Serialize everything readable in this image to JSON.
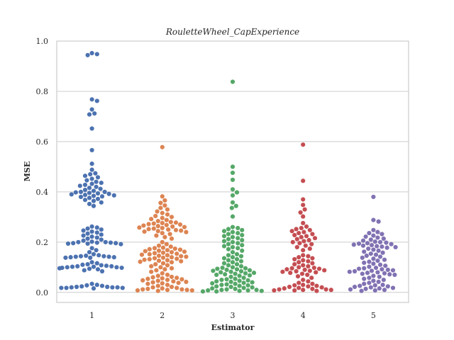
{
  "chart_data": {
    "type": "scatter",
    "subtype": "swarm",
    "title": "RouletteWheel_CapExperience",
    "xlabel": "Estimator",
    "ylabel": "MSE",
    "categories": [
      "1",
      "2",
      "3",
      "4",
      "5"
    ],
    "ylim": [
      -0.04,
      1.0
    ],
    "yticks": [
      "0.0",
      "0.2",
      "0.4",
      "0.6",
      "0.8",
      "1.0"
    ],
    "grid": true,
    "legend": "none",
    "colors": [
      "#4c72b0",
      "#dd8452",
      "#55a868",
      "#c44e52",
      "#8172b3"
    ],
    "series": [
      {
        "category": "1",
        "values": [
          0.952,
          0.948,
          0.944,
          0.768,
          0.762,
          0.728,
          0.712,
          0.708,
          0.652,
          0.566,
          0.512,
          0.488,
          0.474,
          0.47,
          0.464,
          0.458,
          0.452,
          0.446,
          0.44,
          0.436,
          0.432,
          0.428,
          0.424,
          0.42,
          0.416,
          0.412,
          0.408,
          0.404,
          0.4,
          0.4,
          0.398,
          0.396,
          0.394,
          0.392,
          0.39,
          0.388,
          0.386,
          0.384,
          0.382,
          0.38,
          0.376,
          0.372,
          0.368,
          0.364,
          0.358,
          0.352,
          0.344,
          0.262,
          0.258,
          0.254,
          0.25,
          0.246,
          0.242,
          0.238,
          0.234,
          0.23,
          0.226,
          0.222,
          0.218,
          0.214,
          0.21,
          0.206,
          0.202,
          0.2,
          0.2,
          0.198,
          0.198,
          0.196,
          0.196,
          0.194,
          0.194,
          0.192,
          0.176,
          0.168,
          0.16,
          0.152,
          0.148,
          0.146,
          0.144,
          0.144,
          0.142,
          0.142,
          0.14,
          0.14,
          0.138,
          0.138,
          0.12,
          0.116,
          0.112,
          0.11,
          0.108,
          0.106,
          0.104,
          0.104,
          0.102,
          0.102,
          0.1,
          0.1,
          0.098,
          0.098,
          0.096,
          0.094,
          0.092,
          0.088,
          0.084,
          0.034,
          0.03,
          0.028,
          0.026,
          0.024,
          0.022,
          0.022,
          0.02,
          0.02,
          0.02,
          0.018,
          0.018,
          0.018,
          0.016
        ]
      },
      {
        "category": "2",
        "values": [
          0.578,
          0.382,
          0.366,
          0.356,
          0.346,
          0.336,
          0.33,
          0.322,
          0.316,
          0.31,
          0.304,
          0.3,
          0.296,
          0.292,
          0.288,
          0.284,
          0.28,
          0.278,
          0.276,
          0.274,
          0.272,
          0.27,
          0.268,
          0.266,
          0.264,
          0.262,
          0.26,
          0.258,
          0.256,
          0.254,
          0.252,
          0.25,
          0.248,
          0.246,
          0.244,
          0.242,
          0.24,
          0.236,
          0.232,
          0.226,
          0.22,
          0.214,
          0.2,
          0.192,
          0.186,
          0.182,
          0.178,
          0.176,
          0.174,
          0.172,
          0.17,
          0.168,
          0.166,
          0.164,
          0.162,
          0.16,
          0.158,
          0.156,
          0.154,
          0.152,
          0.15,
          0.148,
          0.146,
          0.144,
          0.142,
          0.14,
          0.138,
          0.136,
          0.134,
          0.132,
          0.13,
          0.128,
          0.126,
          0.124,
          0.122,
          0.12,
          0.116,
          0.112,
          0.108,
          0.104,
          0.1,
          0.096,
          0.092,
          0.088,
          0.082,
          0.076,
          0.07,
          0.066,
          0.062,
          0.06,
          0.058,
          0.056,
          0.054,
          0.052,
          0.05,
          0.048,
          0.046,
          0.044,
          0.042,
          0.04,
          0.038,
          0.036,
          0.034,
          0.03,
          0.026,
          0.022,
          0.02,
          0.018,
          0.016,
          0.014,
          0.012,
          0.012,
          0.01,
          0.01,
          0.008,
          0.008,
          0.006
        ]
      },
      {
        "category": "3",
        "values": [
          0.838,
          0.5,
          0.476,
          0.448,
          0.41,
          0.398,
          0.386,
          0.358,
          0.344,
          0.336,
          0.302,
          0.26,
          0.256,
          0.252,
          0.248,
          0.244,
          0.24,
          0.236,
          0.232,
          0.228,
          0.224,
          0.22,
          0.216,
          0.212,
          0.208,
          0.204,
          0.2,
          0.196,
          0.192,
          0.188,
          0.184,
          0.18,
          0.176,
          0.172,
          0.166,
          0.16,
          0.152,
          0.148,
          0.144,
          0.14,
          0.136,
          0.132,
          0.128,
          0.124,
          0.12,
          0.116,
          0.112,
          0.108,
          0.104,
          0.1,
          0.098,
          0.096,
          0.094,
          0.092,
          0.09,
          0.088,
          0.086,
          0.084,
          0.082,
          0.08,
          0.078,
          0.076,
          0.074,
          0.072,
          0.07,
          0.068,
          0.066,
          0.062,
          0.058,
          0.054,
          0.052,
          0.05,
          0.048,
          0.046,
          0.044,
          0.042,
          0.04,
          0.038,
          0.036,
          0.034,
          0.032,
          0.03,
          0.028,
          0.026,
          0.024,
          0.022,
          0.02,
          0.018,
          0.016,
          0.014,
          0.012,
          0.01,
          0.01,
          0.008,
          0.008,
          0.006,
          0.006,
          0.004,
          0.004
        ]
      },
      {
        "category": "4",
        "values": [
          0.588,
          0.444,
          0.37,
          0.348,
          0.33,
          0.318,
          0.302,
          0.276,
          0.262,
          0.256,
          0.252,
          0.248,
          0.244,
          0.24,
          0.236,
          0.232,
          0.228,
          0.224,
          0.22,
          0.216,
          0.212,
          0.208,
          0.204,
          0.2,
          0.196,
          0.192,
          0.186,
          0.18,
          0.174,
          0.168,
          0.148,
          0.144,
          0.14,
          0.136,
          0.132,
          0.128,
          0.124,
          0.12,
          0.116,
          0.112,
          0.108,
          0.104,
          0.1,
          0.098,
          0.096,
          0.094,
          0.092,
          0.09,
          0.088,
          0.086,
          0.084,
          0.082,
          0.08,
          0.078,
          0.074,
          0.07,
          0.064,
          0.058,
          0.05,
          0.044,
          0.038,
          0.034,
          0.03,
          0.028,
          0.026,
          0.024,
          0.022,
          0.02,
          0.018,
          0.016,
          0.014,
          0.012,
          0.012,
          0.01,
          0.01,
          0.008,
          0.008,
          0.006
        ]
      },
      {
        "category": "5",
        "values": [
          0.38,
          0.288,
          0.282,
          0.248,
          0.24,
          0.236,
          0.232,
          0.226,
          0.222,
          0.218,
          0.214,
          0.21,
          0.206,
          0.202,
          0.2,
          0.198,
          0.196,
          0.194,
          0.192,
          0.19,
          0.188,
          0.186,
          0.184,
          0.182,
          0.18,
          0.178,
          0.174,
          0.17,
          0.166,
          0.162,
          0.158,
          0.154,
          0.15,
          0.146,
          0.142,
          0.138,
          0.134,
          0.13,
          0.126,
          0.122,
          0.118,
          0.114,
          0.11,
          0.106,
          0.102,
          0.098,
          0.096,
          0.094,
          0.092,
          0.09,
          0.088,
          0.086,
          0.084,
          0.082,
          0.08,
          0.078,
          0.076,
          0.074,
          0.072,
          0.07,
          0.066,
          0.062,
          0.058,
          0.054,
          0.05,
          0.046,
          0.042,
          0.038,
          0.034,
          0.03,
          0.028,
          0.026,
          0.024,
          0.022,
          0.02,
          0.018,
          0.016,
          0.014,
          0.012,
          0.01,
          0.008,
          0.006
        ]
      }
    ]
  }
}
